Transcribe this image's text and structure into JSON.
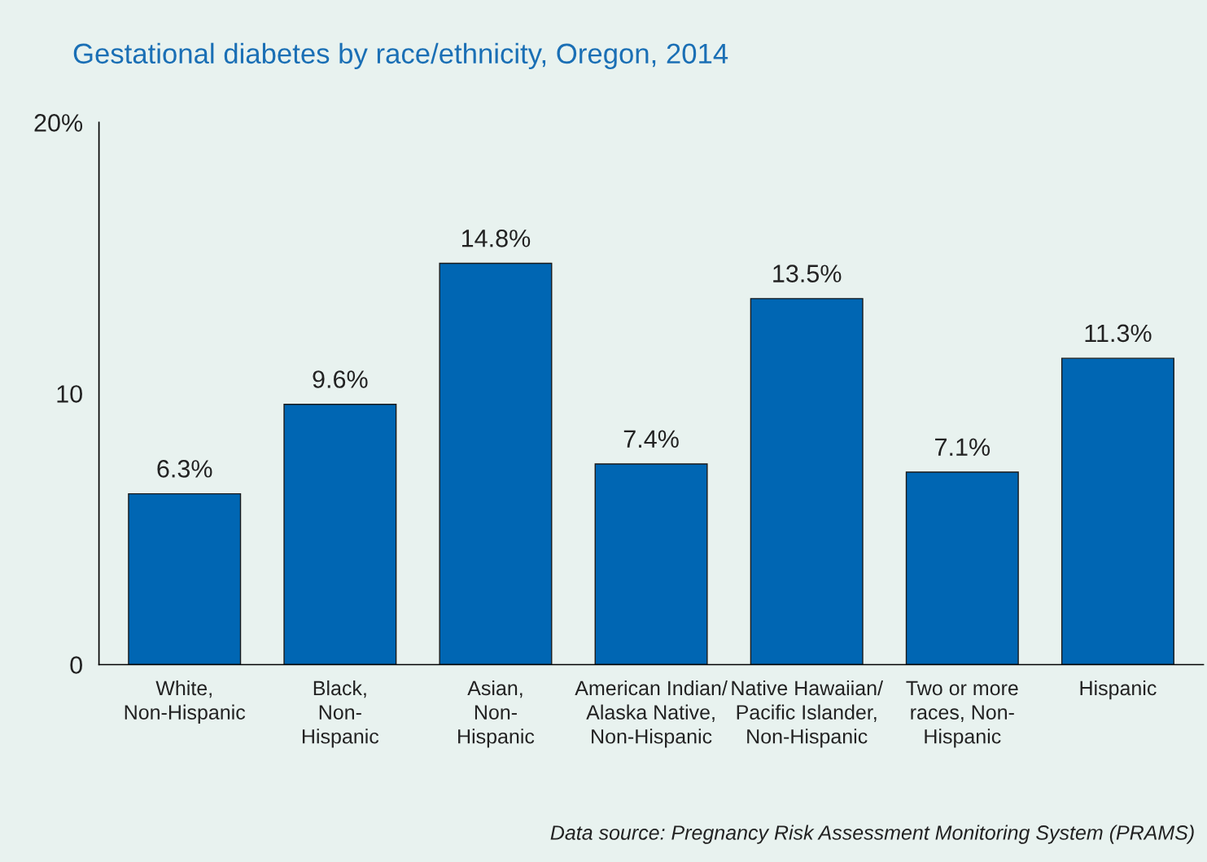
{
  "chart_data": {
    "type": "bar",
    "title": "Gestational diabetes by race/ethnicity, Oregon, 2014",
    "categories": [
      "White,\nNon-Hispanic",
      "Black,\nNon-\nHispanic",
      "Asian,\nNon-\nHispanic",
      "American Indian/\nAlaska Native,\nNon-Hispanic",
      "Native Hawaiian/\nPacific Islander,\nNon-Hispanic",
      "Two or more\nraces, Non-\nHispanic",
      "Hispanic"
    ],
    "values": [
      6.3,
      9.6,
      14.8,
      7.4,
      13.5,
      7.1,
      11.3
    ],
    "value_labels": [
      "6.3%",
      "9.6%",
      "14.8%",
      "7.4%",
      "13.5%",
      "7.1%",
      "11.3%"
    ],
    "color": "#0066b3",
    "ylim": [
      0,
      20
    ],
    "yticks": [
      0,
      10,
      {
        "value": 20,
        "label": "20%"
      }
    ],
    "grid": false,
    "legend": false,
    "annotations": [
      "Data source: Pregnancy Risk Assessment Monitoring System (PRAMS)"
    ]
  }
}
